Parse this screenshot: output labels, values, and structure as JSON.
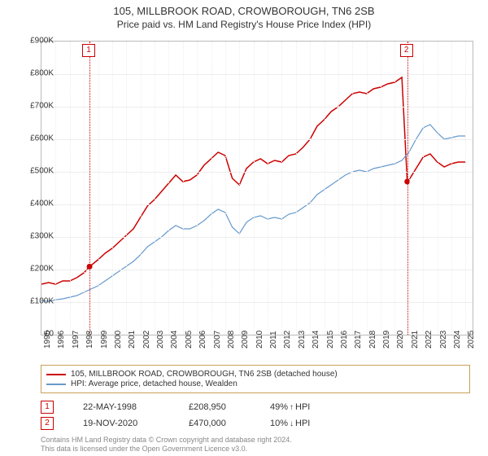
{
  "title": {
    "main": "105, MILLBROOK ROAD, CROWBOROUGH, TN6 2SB",
    "sub": "Price paid vs. HM Land Registry's House Price Index (HPI)"
  },
  "chart": {
    "type": "line",
    "ylim": [
      0,
      900000
    ],
    "ytick_step": 100000,
    "xlim": [
      1995,
      2025.5
    ],
    "xticks": [
      1995,
      1996,
      1997,
      1998,
      1999,
      2000,
      2001,
      2002,
      2003,
      2004,
      2005,
      2006,
      2007,
      2008,
      2009,
      2010,
      2011,
      2012,
      2013,
      2014,
      2015,
      2016,
      2017,
      2018,
      2019,
      2020,
      2021,
      2022,
      2023,
      2024,
      2025
    ],
    "y_prefix": "£",
    "y_suffix": "K",
    "y_divisor": 1000,
    "background_color": "#ffffff",
    "grid_color": "#eeeeee",
    "border_color": "#bbbbbb",
    "axis_font_size": 10,
    "series": [
      {
        "name": "105, MILLBROOK ROAD, CROWBOROUGH, TN6 2SB (detached house)",
        "color": "#cc0000",
        "line_width": 1.5,
        "points": [
          [
            1995,
            155000
          ],
          [
            1995.5,
            160000
          ],
          [
            1996,
            155000
          ],
          [
            1996.5,
            165000
          ],
          [
            1997,
            165000
          ],
          [
            1997.5,
            175000
          ],
          [
            1998,
            190000
          ],
          [
            1998.4,
            208950
          ],
          [
            1999,
            230000
          ],
          [
            1999.5,
            250000
          ],
          [
            2000,
            265000
          ],
          [
            2000.5,
            285000
          ],
          [
            2001,
            305000
          ],
          [
            2001.5,
            325000
          ],
          [
            2002,
            360000
          ],
          [
            2002.5,
            395000
          ],
          [
            2003,
            415000
          ],
          [
            2003.5,
            440000
          ],
          [
            2004,
            465000
          ],
          [
            2004.5,
            490000
          ],
          [
            2005,
            470000
          ],
          [
            2005.5,
            475000
          ],
          [
            2006,
            490000
          ],
          [
            2006.5,
            520000
          ],
          [
            2007,
            540000
          ],
          [
            2007.5,
            560000
          ],
          [
            2008,
            550000
          ],
          [
            2008.5,
            480000
          ],
          [
            2009,
            460000
          ],
          [
            2009.5,
            510000
          ],
          [
            2010,
            530000
          ],
          [
            2010.5,
            540000
          ],
          [
            2011,
            525000
          ],
          [
            2011.5,
            535000
          ],
          [
            2012,
            530000
          ],
          [
            2012.5,
            550000
          ],
          [
            2013,
            555000
          ],
          [
            2013.5,
            575000
          ],
          [
            2014,
            600000
          ],
          [
            2014.5,
            640000
          ],
          [
            2015,
            660000
          ],
          [
            2015.5,
            685000
          ],
          [
            2016,
            700000
          ],
          [
            2016.5,
            720000
          ],
          [
            2017,
            740000
          ],
          [
            2017.5,
            745000
          ],
          [
            2018,
            740000
          ],
          [
            2018.5,
            755000
          ],
          [
            2019,
            760000
          ],
          [
            2019.5,
            770000
          ],
          [
            2020,
            775000
          ],
          [
            2020.5,
            790000
          ],
          [
            2020.88,
            470000
          ],
          [
            2021,
            475000
          ],
          [
            2021.5,
            510000
          ],
          [
            2022,
            545000
          ],
          [
            2022.5,
            555000
          ],
          [
            2023,
            530000
          ],
          [
            2023.5,
            515000
          ],
          [
            2024,
            525000
          ],
          [
            2024.5,
            530000
          ],
          [
            2025,
            530000
          ]
        ]
      },
      {
        "name": "HPI: Average price, detached house, Wealden",
        "color": "#6699cc",
        "line_width": 1.2,
        "points": [
          [
            1995,
            105000
          ],
          [
            1995.5,
            102000
          ],
          [
            1996,
            107000
          ],
          [
            1996.5,
            110000
          ],
          [
            1997,
            115000
          ],
          [
            1997.5,
            120000
          ],
          [
            1998,
            130000
          ],
          [
            1998.5,
            140000
          ],
          [
            1999,
            150000
          ],
          [
            1999.5,
            165000
          ],
          [
            2000,
            180000
          ],
          [
            2000.5,
            195000
          ],
          [
            2001,
            210000
          ],
          [
            2001.5,
            225000
          ],
          [
            2002,
            245000
          ],
          [
            2002.5,
            270000
          ],
          [
            2003,
            285000
          ],
          [
            2003.5,
            300000
          ],
          [
            2004,
            320000
          ],
          [
            2004.5,
            335000
          ],
          [
            2005,
            325000
          ],
          [
            2005.5,
            325000
          ],
          [
            2006,
            335000
          ],
          [
            2006.5,
            350000
          ],
          [
            2007,
            370000
          ],
          [
            2007.5,
            385000
          ],
          [
            2008,
            375000
          ],
          [
            2008.5,
            330000
          ],
          [
            2009,
            310000
          ],
          [
            2009.5,
            345000
          ],
          [
            2010,
            360000
          ],
          [
            2010.5,
            365000
          ],
          [
            2011,
            355000
          ],
          [
            2011.5,
            360000
          ],
          [
            2012,
            355000
          ],
          [
            2012.5,
            370000
          ],
          [
            2013,
            375000
          ],
          [
            2013.5,
            390000
          ],
          [
            2014,
            405000
          ],
          [
            2014.5,
            430000
          ],
          [
            2015,
            445000
          ],
          [
            2015.5,
            460000
          ],
          [
            2016,
            475000
          ],
          [
            2016.5,
            490000
          ],
          [
            2017,
            500000
          ],
          [
            2017.5,
            505000
          ],
          [
            2018,
            500000
          ],
          [
            2018.5,
            510000
          ],
          [
            2019,
            515000
          ],
          [
            2019.5,
            520000
          ],
          [
            2020,
            525000
          ],
          [
            2020.5,
            535000
          ],
          [
            2021,
            560000
          ],
          [
            2021.5,
            600000
          ],
          [
            2022,
            635000
          ],
          [
            2022.5,
            645000
          ],
          [
            2023,
            620000
          ],
          [
            2023.5,
            600000
          ],
          [
            2024,
            605000
          ],
          [
            2024.5,
            610000
          ],
          [
            2025,
            610000
          ]
        ]
      }
    ],
    "markers": [
      {
        "id": "1",
        "x": 1998.4,
        "y": 208950,
        "color": "#cc0000"
      },
      {
        "id": "2",
        "x": 2020.88,
        "y": 470000,
        "color": "#cc0000"
      }
    ]
  },
  "legend": {
    "border_color": "#c9a05a",
    "font_size": 10,
    "items": [
      {
        "color": "#cc0000",
        "label": "105, MILLBROOK ROAD, CROWBOROUGH, TN6 2SB (detached house)"
      },
      {
        "color": "#6699cc",
        "label": "HPI: Average price, detached house, Wealden"
      }
    ]
  },
  "sales": [
    {
      "id": "1",
      "date": "22-MAY-1998",
      "price": "£208,950",
      "hpi_pct": "49%",
      "hpi_dir": "up",
      "hpi_label": "HPI"
    },
    {
      "id": "2",
      "date": "19-NOV-2020",
      "price": "£470,000",
      "hpi_pct": "10%",
      "hpi_dir": "down",
      "hpi_label": "HPI"
    }
  ],
  "footer": {
    "line1": "Contains HM Land Registry data © Crown copyright and database right 2024.",
    "line2": "This data is licensed under the Open Government Licence v3.0."
  }
}
